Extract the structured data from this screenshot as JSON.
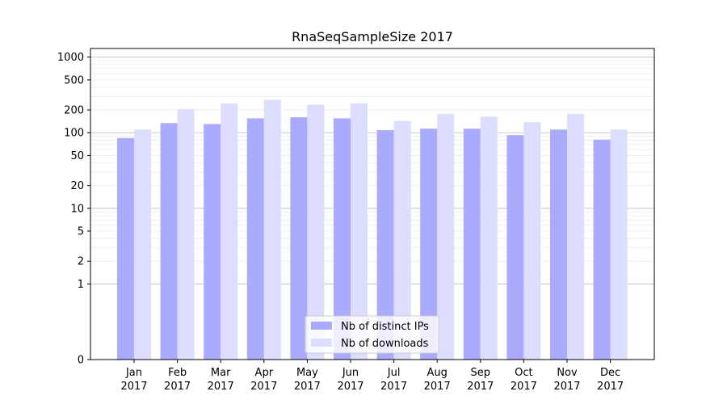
{
  "chart_data": {
    "type": "bar",
    "title": "RnaSeqSampleSize 2017",
    "xlabel": "",
    "ylabel": "",
    "y_scale": "symlog",
    "y_ticks": [
      0,
      1,
      2,
      5,
      10,
      20,
      50,
      100,
      200,
      500,
      1000
    ],
    "ylim": [
      0,
      1300
    ],
    "grid": true,
    "legend_position": "lower-center",
    "categories": [
      [
        "Jan",
        "2017"
      ],
      [
        "Feb",
        "2017"
      ],
      [
        "Mar",
        "2017"
      ],
      [
        "Apr",
        "2017"
      ],
      [
        "May",
        "2017"
      ],
      [
        "Jun",
        "2017"
      ],
      [
        "Jul",
        "2017"
      ],
      [
        "Aug",
        "2017"
      ],
      [
        "Sep",
        "2017"
      ],
      [
        "Oct",
        "2017"
      ],
      [
        "Nov",
        "2017"
      ],
      [
        "Dec",
        "2017"
      ]
    ],
    "series": [
      {
        "name": "Nb of distinct IPs",
        "color": "#aaaaff",
        "values": [
          85,
          134,
          130,
          155,
          160,
          155,
          108,
          113,
          113,
          93,
          110,
          81
        ]
      },
      {
        "name": "Nb of downloads",
        "color": "#ddddff",
        "values": [
          110,
          205,
          243,
          272,
          235,
          245,
          143,
          178,
          163,
          138,
          178,
          110
        ]
      }
    ]
  }
}
